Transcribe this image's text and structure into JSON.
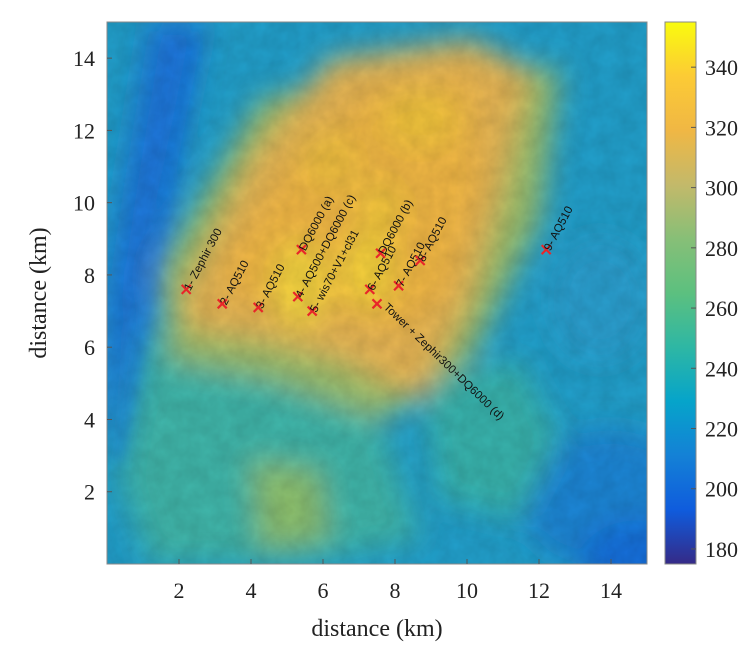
{
  "chart_data": {
    "type": "heatmap",
    "title": "",
    "xlabel": "distance (km)",
    "ylabel": "distance (km)",
    "xlim": [
      0,
      15
    ],
    "ylim": [
      0,
      15
    ],
    "xticks": [
      2,
      4,
      6,
      8,
      10,
      12,
      14
    ],
    "yticks": [
      2,
      4,
      6,
      8,
      10,
      12,
      14
    ],
    "colorbar": {
      "colormap": "parula",
      "range": [
        175,
        355
      ],
      "ticks": [
        180,
        200,
        220,
        240,
        260,
        280,
        300,
        320,
        340
      ]
    },
    "sites": [
      {
        "label": "1- Zephir 300",
        "x": 2.2,
        "y": 7.6
      },
      {
        "label": "2- AQ510",
        "x": 3.2,
        "y": 7.2
      },
      {
        "label": "3- AQ510",
        "x": 4.2,
        "y": 7.1
      },
      {
        "label": "DQ6000 (a)",
        "x": 5.4,
        "y": 8.7
      },
      {
        "label": "4- AQ500+DQ6000 (c)",
        "x": 5.3,
        "y": 7.4
      },
      {
        "label": "5- wis70+V1+cl31",
        "x": 5.7,
        "y": 7.0
      },
      {
        "label": "6- AQ510",
        "x": 7.3,
        "y": 7.6
      },
      {
        "label": "DQ6000 (b)",
        "x": 7.6,
        "y": 8.6
      },
      {
        "label": "7- AQ510",
        "x": 8.1,
        "y": 7.7
      },
      {
        "label": "8- AQ510",
        "x": 8.7,
        "y": 8.4
      },
      {
        "label": "Tower + Zephir300+DQ6000 (d)",
        "x": 7.5,
        "y": 7.2
      },
      {
        "label": "9- AQ510",
        "x": 12.2,
        "y": 8.7
      }
    ]
  }
}
